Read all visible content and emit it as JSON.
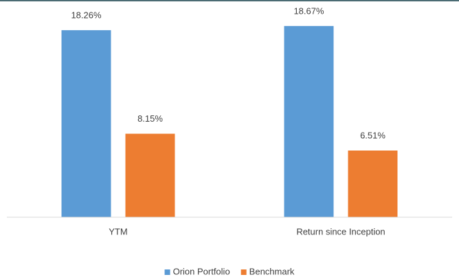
{
  "chart_data": {
    "type": "bar",
    "categories": [
      "YTM",
      "Return since Inception"
    ],
    "series": [
      {
        "name": "Orion Portfolio",
        "color": "#5b9bd5",
        "values": [
          18.26,
          18.67
        ],
        "value_labels": [
          "18.26%",
          "18.67%"
        ]
      },
      {
        "name": "Benchmark",
        "color": "#ed7d31",
        "values": [
          8.15,
          6.51
        ],
        "value_labels": [
          "8.15%",
          "6.51%"
        ]
      }
    ],
    "ylim": [
      0,
      20
    ],
    "legend": "bottom"
  }
}
